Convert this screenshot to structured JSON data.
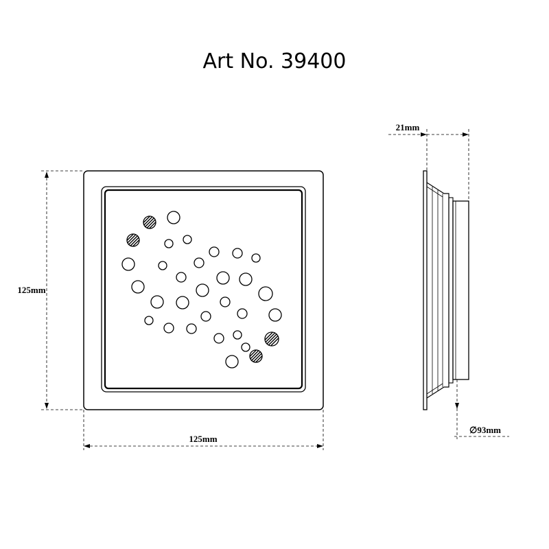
{
  "title": "Art No. 39400",
  "dimensions": {
    "height_label": "125mm",
    "width_label": "125mm",
    "depth_label": "21mm",
    "diameter_label": "∅93mm"
  },
  "colors": {
    "line": "#000000",
    "background": "#ffffff"
  }
}
